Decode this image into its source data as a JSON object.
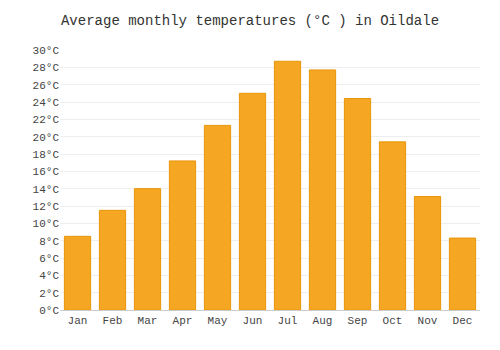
{
  "chart_data": {
    "type": "bar",
    "title": "Average monthly temperatures (°C ) in Oildale",
    "categories": [
      "Jan",
      "Feb",
      "Mar",
      "Apr",
      "May",
      "Jun",
      "Jul",
      "Aug",
      "Sep",
      "Oct",
      "Nov",
      "Dec"
    ],
    "values": [
      8.5,
      11.5,
      14.0,
      17.2,
      21.3,
      25.0,
      28.7,
      27.7,
      24.4,
      19.4,
      13.1,
      8.3
    ],
    "color": "#F5A623",
    "ylim": [
      0,
      30
    ],
    "yticks": [
      {
        "value": 0,
        "label": "0°C"
      },
      {
        "value": 2,
        "label": "2°C"
      },
      {
        "value": 4,
        "label": "4°C"
      },
      {
        "value": 6,
        "label": "6°C"
      },
      {
        "value": 8,
        "label": "8°C"
      },
      {
        "value": 10,
        "label": "10°C"
      },
      {
        "value": 12,
        "label": "12°C"
      },
      {
        "value": 14,
        "label": "14°C"
      },
      {
        "value": 16,
        "label": "16°C"
      },
      {
        "value": 18,
        "label": "18°C"
      },
      {
        "value": 20,
        "label": "20°C"
      },
      {
        "value": 22,
        "label": "22°C"
      },
      {
        "value": 24,
        "label": "24°C"
      },
      {
        "value": 26,
        "label": "26°C"
      },
      {
        "value": 28,
        "label": "28°C"
      },
      {
        "value": 30,
        "label": "30°C"
      }
    ],
    "grid": true
  }
}
